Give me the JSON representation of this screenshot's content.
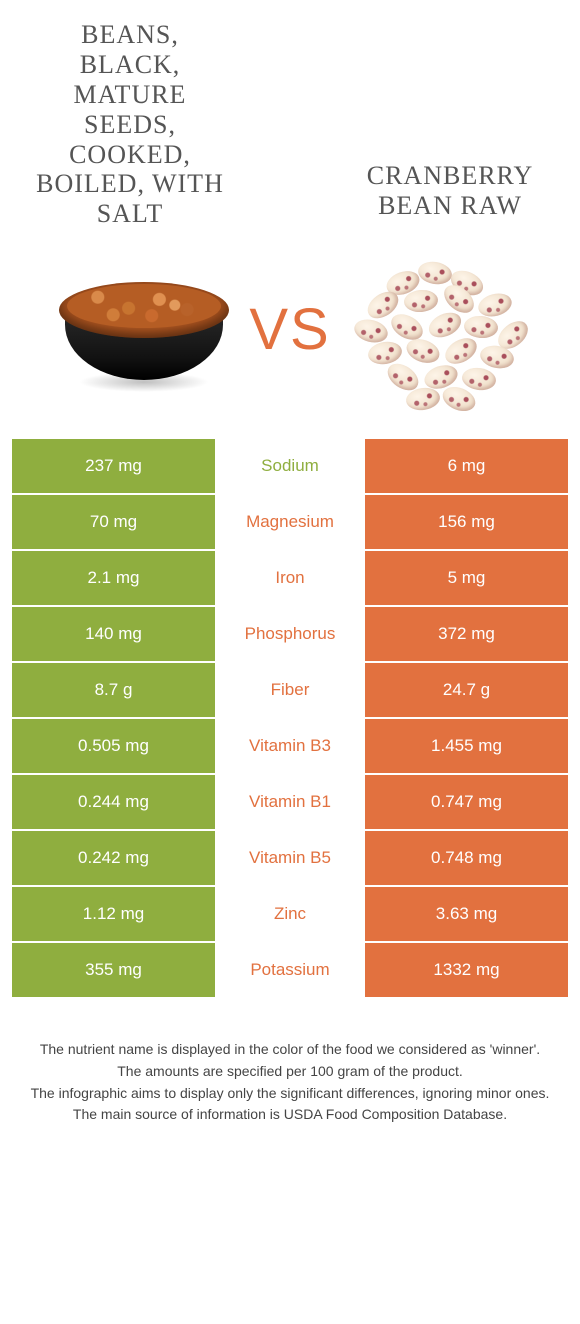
{
  "colors": {
    "left": "#8fae3f",
    "right": "#e2713f",
    "vs": "#e2713f",
    "text_on_cell": "#ffffff",
    "footer_text": "#444444"
  },
  "typography": {
    "title_fontsize": 26,
    "cell_fontsize": 17,
    "vs_fontsize": 58,
    "footer_fontsize": 14
  },
  "foods": {
    "left": {
      "title": "Beans, black, mature seeds, cooked, boiled, with salt"
    },
    "right": {
      "title": "Cranberry bean raw"
    }
  },
  "vs_label": "VS",
  "nutrients": [
    {
      "name": "Sodium",
      "left": "237 mg",
      "right": "6 mg",
      "winner": "left"
    },
    {
      "name": "Magnesium",
      "left": "70 mg",
      "right": "156 mg",
      "winner": "right"
    },
    {
      "name": "Iron",
      "left": "2.1 mg",
      "right": "5 mg",
      "winner": "right"
    },
    {
      "name": "Phosphorus",
      "left": "140 mg",
      "right": "372 mg",
      "winner": "right"
    },
    {
      "name": "Fiber",
      "left": "8.7 g",
      "right": "24.7 g",
      "winner": "right"
    },
    {
      "name": "Vitamin B3",
      "left": "0.505 mg",
      "right": "1.455 mg",
      "winner": "right"
    },
    {
      "name": "Vitamin B1",
      "left": "0.244 mg",
      "right": "0.747 mg",
      "winner": "right"
    },
    {
      "name": "Vitamin B5",
      "left": "0.242 mg",
      "right": "0.748 mg",
      "winner": "right"
    },
    {
      "name": "Zinc",
      "left": "1.12 mg",
      "right": "3.63 mg",
      "winner": "right"
    },
    {
      "name": "Potassium",
      "left": "355 mg",
      "right": "1332 mg",
      "winner": "right"
    }
  ],
  "footer_lines": [
    "The nutrient name is displayed in the color of the food we considered as 'winner'.",
    "The amounts are specified per 100 gram of the product.",
    "The infographic aims to display only the significant differences, ignoring minor ones.",
    "The main source of information is USDA Food Composition Database."
  ]
}
